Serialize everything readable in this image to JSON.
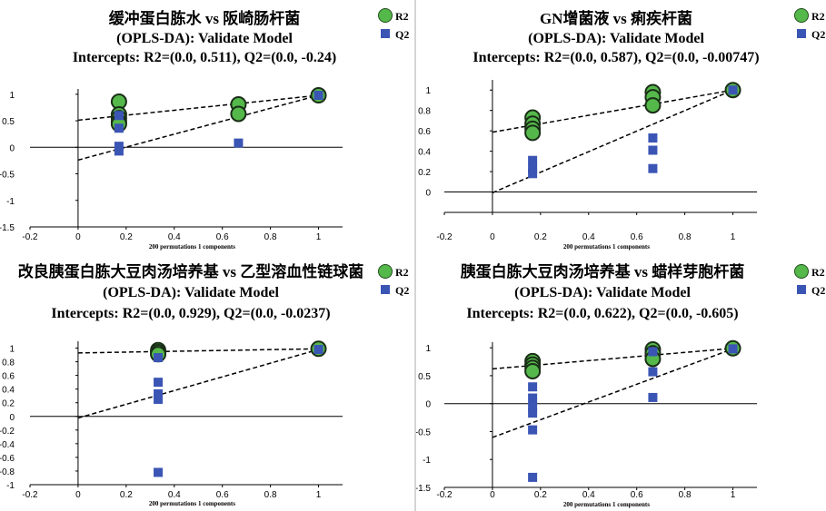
{
  "legend": {
    "r2_label": "R2",
    "q2_label": "Q2",
    "r2_color": "#55b84b",
    "q2_color": "#3b55b5"
  },
  "chart_data": [
    {
      "type": "scatter",
      "title": "缓冲蛋白胨水 vs 阪崎肠杆菌",
      "subtitle": "(OPLS-DA): Validate Model",
      "intercepts_text": "Intercepts: R2=(0.0, 0.511), Q2=(0.0, -0.24)",
      "xlabel": "200 permutations 1 components",
      "xlim": [
        -0.2,
        1.1
      ],
      "ylim": [
        -1.5,
        1.1
      ],
      "xticks": [
        "-0.2",
        "0",
        "0.2",
        "0.4",
        "0.6",
        "0.8",
        "1"
      ],
      "yticks": [
        "-1.5",
        "-1",
        "-0.5",
        "0",
        "0.5",
        "1"
      ],
      "series": [
        {
          "name": "R2",
          "x": [
            0.17,
            0.17,
            0.17,
            0.17,
            0.17,
            0.667,
            0.667,
            1.0
          ],
          "y": [
            0.86,
            0.62,
            0.55,
            0.48,
            0.44,
            0.81,
            0.63,
            0.98
          ]
        },
        {
          "name": "Q2",
          "x": [
            0.17,
            0.17,
            0.17,
            0.17,
            0.667,
            1.0
          ],
          "y": [
            0.6,
            0.36,
            0.02,
            -0.07,
            0.08,
            0.98
          ]
        }
      ],
      "r2_line": [
        [
          0,
          0.511
        ],
        [
          1,
          0.98
        ]
      ],
      "q2_line": [
        [
          0,
          -0.24
        ],
        [
          1,
          0.98
        ]
      ]
    },
    {
      "type": "scatter",
      "title": "GN增菌液 vs 痢疾杆菌",
      "subtitle": "(OPLS-DA): Validate Model",
      "intercepts_text": "Intercepts: R2=(0.0, 0.587), Q2=(0.0, -0.00747)",
      "xlabel": "200 permutations 1 components",
      "xlim": [
        -0.2,
        1.1
      ],
      "ylim": [
        -0.2,
        1.1
      ],
      "xticks": [
        "-0.2",
        "0",
        "0.2",
        "0.4",
        "0.6",
        "0.8",
        "1"
      ],
      "yticks": [
        "0",
        "0.2",
        "0.4",
        "0.6",
        "0.8",
        "1"
      ],
      "series": [
        {
          "name": "R2",
          "x": [
            0.167,
            0.167,
            0.167,
            0.167,
            0.667,
            0.667,
            0.667,
            1.0
          ],
          "y": [
            0.73,
            0.67,
            0.62,
            0.58,
            0.98,
            0.93,
            0.85,
            1.0
          ]
        },
        {
          "name": "Q2",
          "x": [
            0.167,
            0.167,
            0.167,
            0.667,
            0.667,
            0.667,
            1.0
          ],
          "y": [
            0.31,
            0.23,
            0.18,
            0.53,
            0.41,
            0.23,
            1.0
          ]
        }
      ],
      "r2_line": [
        [
          0,
          0.587
        ],
        [
          1,
          1.0
        ]
      ],
      "q2_line": [
        [
          0,
          -0.00747
        ],
        [
          1,
          1.0
        ]
      ]
    },
    {
      "type": "scatter",
      "title": "改良胰蛋白胨大豆肉汤培养基 vs 乙型溶血性链球菌",
      "subtitle": "(OPLS-DA): Validate Model",
      "intercepts_text": "Intercepts: R2=(0.0, 0.929), Q2=(0.0, -0.0237)",
      "xlabel": "200 permutations 1 components",
      "xlim": [
        -0.2,
        1.1
      ],
      "ylim": [
        -1.0,
        1.1
      ],
      "xticks": [
        "-0.2",
        "0",
        "0.2",
        "0.4",
        "0.6",
        "0.8",
        "1"
      ],
      "yticks": [
        "-1",
        "-0.8",
        "-0.6",
        "-0.4",
        "-0.2",
        "0",
        "0.2",
        "0.4",
        "0.6",
        "0.8",
        "1"
      ],
      "series": [
        {
          "name": "R2",
          "x": [
            0.333,
            0.333,
            0.333,
            1.0
          ],
          "y": [
            0.97,
            0.94,
            0.91,
            0.99
          ]
        },
        {
          "name": "Q2",
          "x": [
            0.333,
            0.333,
            0.333,
            0.333,
            0.333,
            1.0
          ],
          "y": [
            0.86,
            0.5,
            0.33,
            0.25,
            -0.82,
            0.98
          ]
        }
      ],
      "r2_line": [
        [
          0,
          0.929
        ],
        [
          1,
          0.99
        ]
      ],
      "q2_line": [
        [
          0,
          -0.0237
        ],
        [
          1,
          0.98
        ]
      ]
    },
    {
      "type": "scatter",
      "title": "胰蛋白胨大豆肉汤培养基 vs 蜡样芽胞杆菌",
      "subtitle": "(OPLS-DA): Validate Model",
      "intercepts_text": "Intercepts: R2=(0.0, 0.622), Q2=(0.0, -0.605)",
      "xlabel": "200 permutations 1 components",
      "xlim": [
        -0.2,
        1.1
      ],
      "ylim": [
        -1.5,
        1.1
      ],
      "xticks": [
        "-0.2",
        "0",
        "0.2",
        "0.4",
        "0.6",
        "0.8",
        "1"
      ],
      "yticks": [
        "-1.5",
        "-1",
        "-0.5",
        "0",
        "0.5",
        "1"
      ],
      "series": [
        {
          "name": "R2",
          "x": [
            0.167,
            0.167,
            0.167,
            0.167,
            0.667,
            0.667,
            0.667,
            1.0
          ],
          "y": [
            0.76,
            0.7,
            0.64,
            0.58,
            0.97,
            0.9,
            0.8,
            0.99
          ]
        },
        {
          "name": "Q2",
          "x": [
            0.167,
            0.167,
            0.167,
            0.167,
            0.167,
            0.167,
            0.667,
            0.667,
            0.667,
            1.0
          ],
          "y": [
            0.3,
            0.1,
            -0.05,
            -0.17,
            -0.47,
            -1.32,
            0.93,
            0.57,
            0.11,
            0.98
          ]
        }
      ],
      "r2_line": [
        [
          0,
          0.622
        ],
        [
          1,
          0.99
        ]
      ],
      "q2_line": [
        [
          0,
          -0.605
        ],
        [
          1,
          0.98
        ]
      ]
    }
  ]
}
